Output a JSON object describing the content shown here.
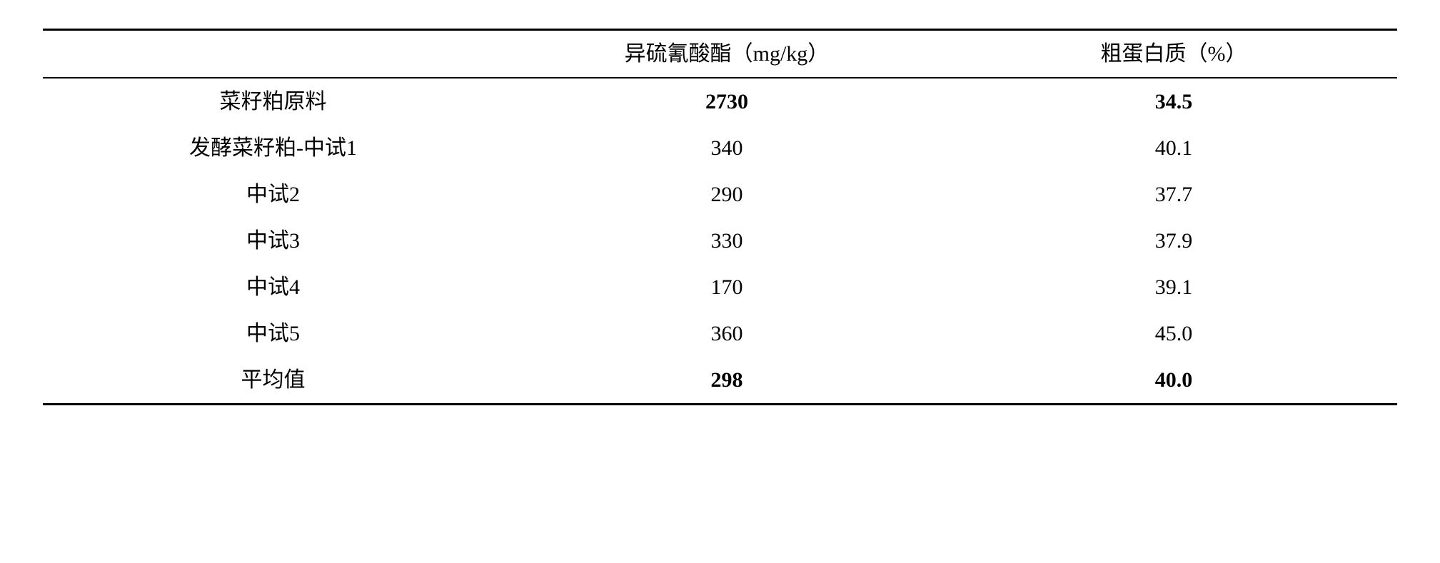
{
  "table": {
    "columns": [
      {
        "label": "",
        "align": "center"
      },
      {
        "label": "异硫氰酸酯（mg/kg）",
        "align": "center"
      },
      {
        "label": "粗蛋白质（%）",
        "align": "center"
      }
    ],
    "rows": [
      {
        "cells": [
          "菜籽粕原料",
          "2730",
          "34.5"
        ],
        "bold": [
          false,
          true,
          true
        ]
      },
      {
        "cells": [
          "发酵菜籽粕-中试1",
          "340",
          "40.1"
        ],
        "bold": [
          false,
          false,
          false
        ]
      },
      {
        "cells": [
          "中试2",
          "290",
          "37.7"
        ],
        "bold": [
          false,
          false,
          false
        ]
      },
      {
        "cells": [
          "中试3",
          "330",
          "37.9"
        ],
        "bold": [
          false,
          false,
          false
        ]
      },
      {
        "cells": [
          "中试4",
          "170",
          "39.1"
        ],
        "bold": [
          false,
          false,
          false
        ]
      },
      {
        "cells": [
          "中试5",
          "360",
          "45.0"
        ],
        "bold": [
          false,
          false,
          false
        ]
      },
      {
        "cells": [
          "平均值",
          "298",
          "40.0"
        ],
        "bold": [
          false,
          true,
          true
        ]
      }
    ],
    "font_size": 30,
    "text_color": "#000000",
    "border_color": "#000000",
    "background_color": "#ffffff"
  }
}
